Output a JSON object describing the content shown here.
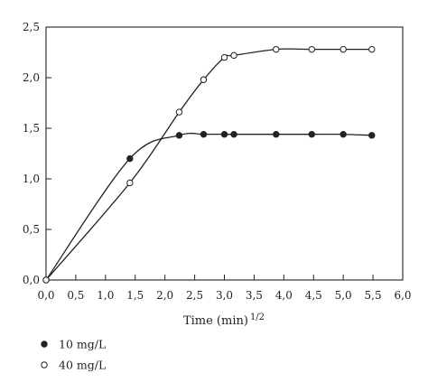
{
  "chart_data": {
    "type": "line",
    "title": "",
    "xlabel": "Time (min)",
    "xlabel_superscript": "1/2",
    "ylabel": "",
    "xlim": [
      0,
      6
    ],
    "ylim": [
      0,
      2.5
    ],
    "xticks": [
      "0,0",
      "0,5",
      "1,0",
      "1,5",
      "2,0",
      "2,5",
      "3,0",
      "3,5",
      "4,0",
      "4,5",
      "5,0",
      "5,5",
      "6,0"
    ],
    "yticks": [
      "0,0",
      "0,5",
      "1,0",
      "1,5",
      "2,0",
      "2,5"
    ],
    "grid": false,
    "legend_position": "bottom-left",
    "series": [
      {
        "name": "10 mg/L",
        "marker": "filled-circle",
        "color": "#222222",
        "x": [
          0,
          1.41,
          2.24,
          2.65,
          3.0,
          3.16,
          3.87,
          4.47,
          5.0,
          5.48
        ],
        "y": [
          0,
          1.2,
          1.43,
          1.44,
          1.44,
          1.44,
          1.44,
          1.44,
          1.44,
          1.43
        ]
      },
      {
        "name": "40 mg/L",
        "marker": "open-circle",
        "color": "#222222",
        "x": [
          0,
          1.41,
          2.24,
          2.65,
          3.0,
          3.16,
          3.87,
          4.47,
          5.0,
          5.48
        ],
        "y": [
          0,
          0.96,
          1.66,
          1.98,
          2.2,
          2.22,
          2.28,
          2.28,
          2.28,
          2.28
        ]
      }
    ]
  }
}
